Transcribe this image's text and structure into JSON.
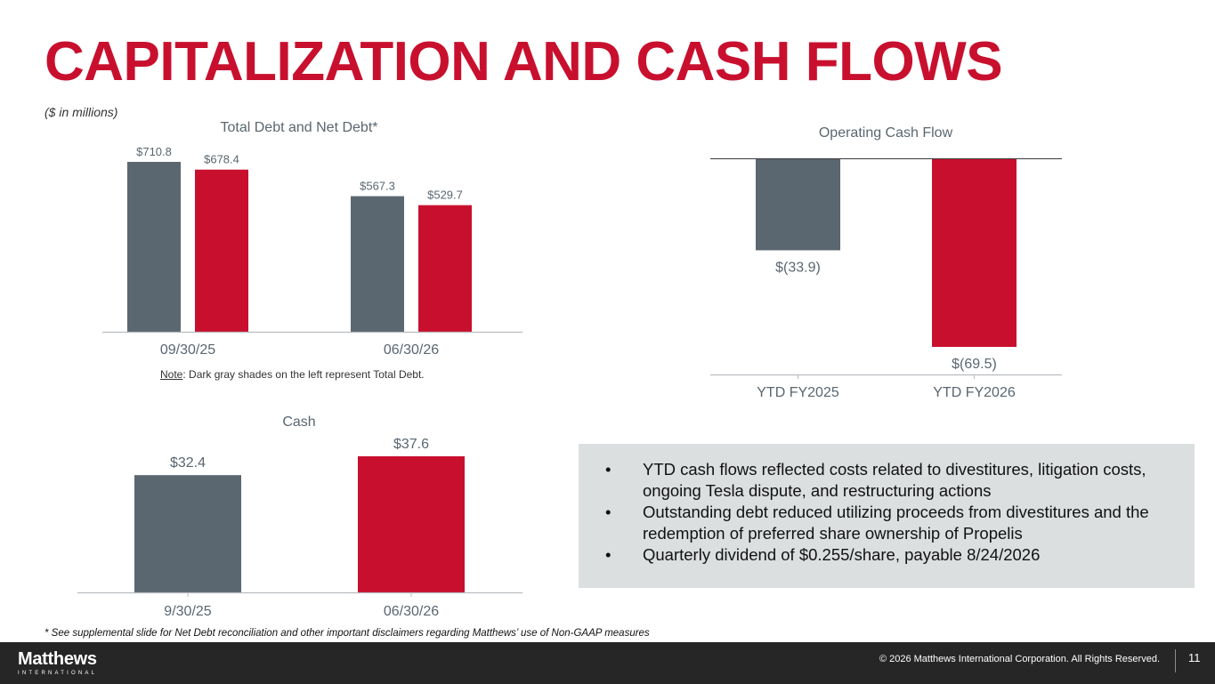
{
  "slide": {
    "title": "CAPITALIZATION AND CASH FLOWS",
    "units": "($ in millions)",
    "note_prefix": "Note",
    "note_text": ": Dark gray shades on the left represent Total Debt.",
    "footnote": "* See supplemental slide for Net Debt reconciliation and other important disclaimers regarding Matthews’ use of Non-GAAP measures",
    "bullets": [
      "YTD cash flows reflected costs related to divestitures, litigation costs, ongoing Tesla dispute, and restructuring actions",
      "Outstanding debt  reduced utilizing proceeds from divestitures and the redemption of preferred share ownership of Propelis",
      "Quarterly dividend of $0.255/share, payable 8/24/2026"
    ],
    "bullet_glyph": "•"
  },
  "footer": {
    "logo_name": "Matthews",
    "logo_sub": "INTERNATIONAL",
    "copyright": "© 2026 Matthews International Corporation. All Rights Reserved.",
    "page_number": "11"
  },
  "colors": {
    "accent": "#c8102e",
    "gray_bar": "#5b6770",
    "callout_bg": "#dcdfe0",
    "footer_bg": "#262626"
  },
  "chart_data": [
    {
      "id": "debt",
      "type": "bar",
      "title": "Total Debt and Net Debt*",
      "categories": [
        "09/30/25",
        "06/30/26"
      ],
      "series": [
        {
          "values": [
            710.8,
            678.4
          ]
        },
        {
          "values": [
            567.3,
            529.7
          ]
        }
      ],
      "value_labels": [
        [
          "$710.8",
          "$678.4"
        ],
        [
          "$567.3",
          "$529.7"
        ]
      ],
      "ylim": [
        0,
        710.8
      ],
      "grid": false
    },
    {
      "id": "ocf",
      "type": "bar",
      "title": "Operating Cash Flow",
      "categories": [
        "YTD FY2025",
        "YTD FY2026"
      ],
      "values": [
        -33.9,
        -69.5
      ],
      "value_labels": [
        "$(33.9)",
        "$(69.5)"
      ],
      "ylim": [
        -69.5,
        0
      ],
      "grid": false
    },
    {
      "id": "cash",
      "type": "bar",
      "title": "Cash",
      "categories": [
        "9/30/25",
        "06/30/26"
      ],
      "values": [
        32.4,
        37.6
      ],
      "value_labels": [
        "$32.4",
        "$37.6"
      ],
      "ylim": [
        0,
        37.6
      ],
      "grid": false
    }
  ]
}
